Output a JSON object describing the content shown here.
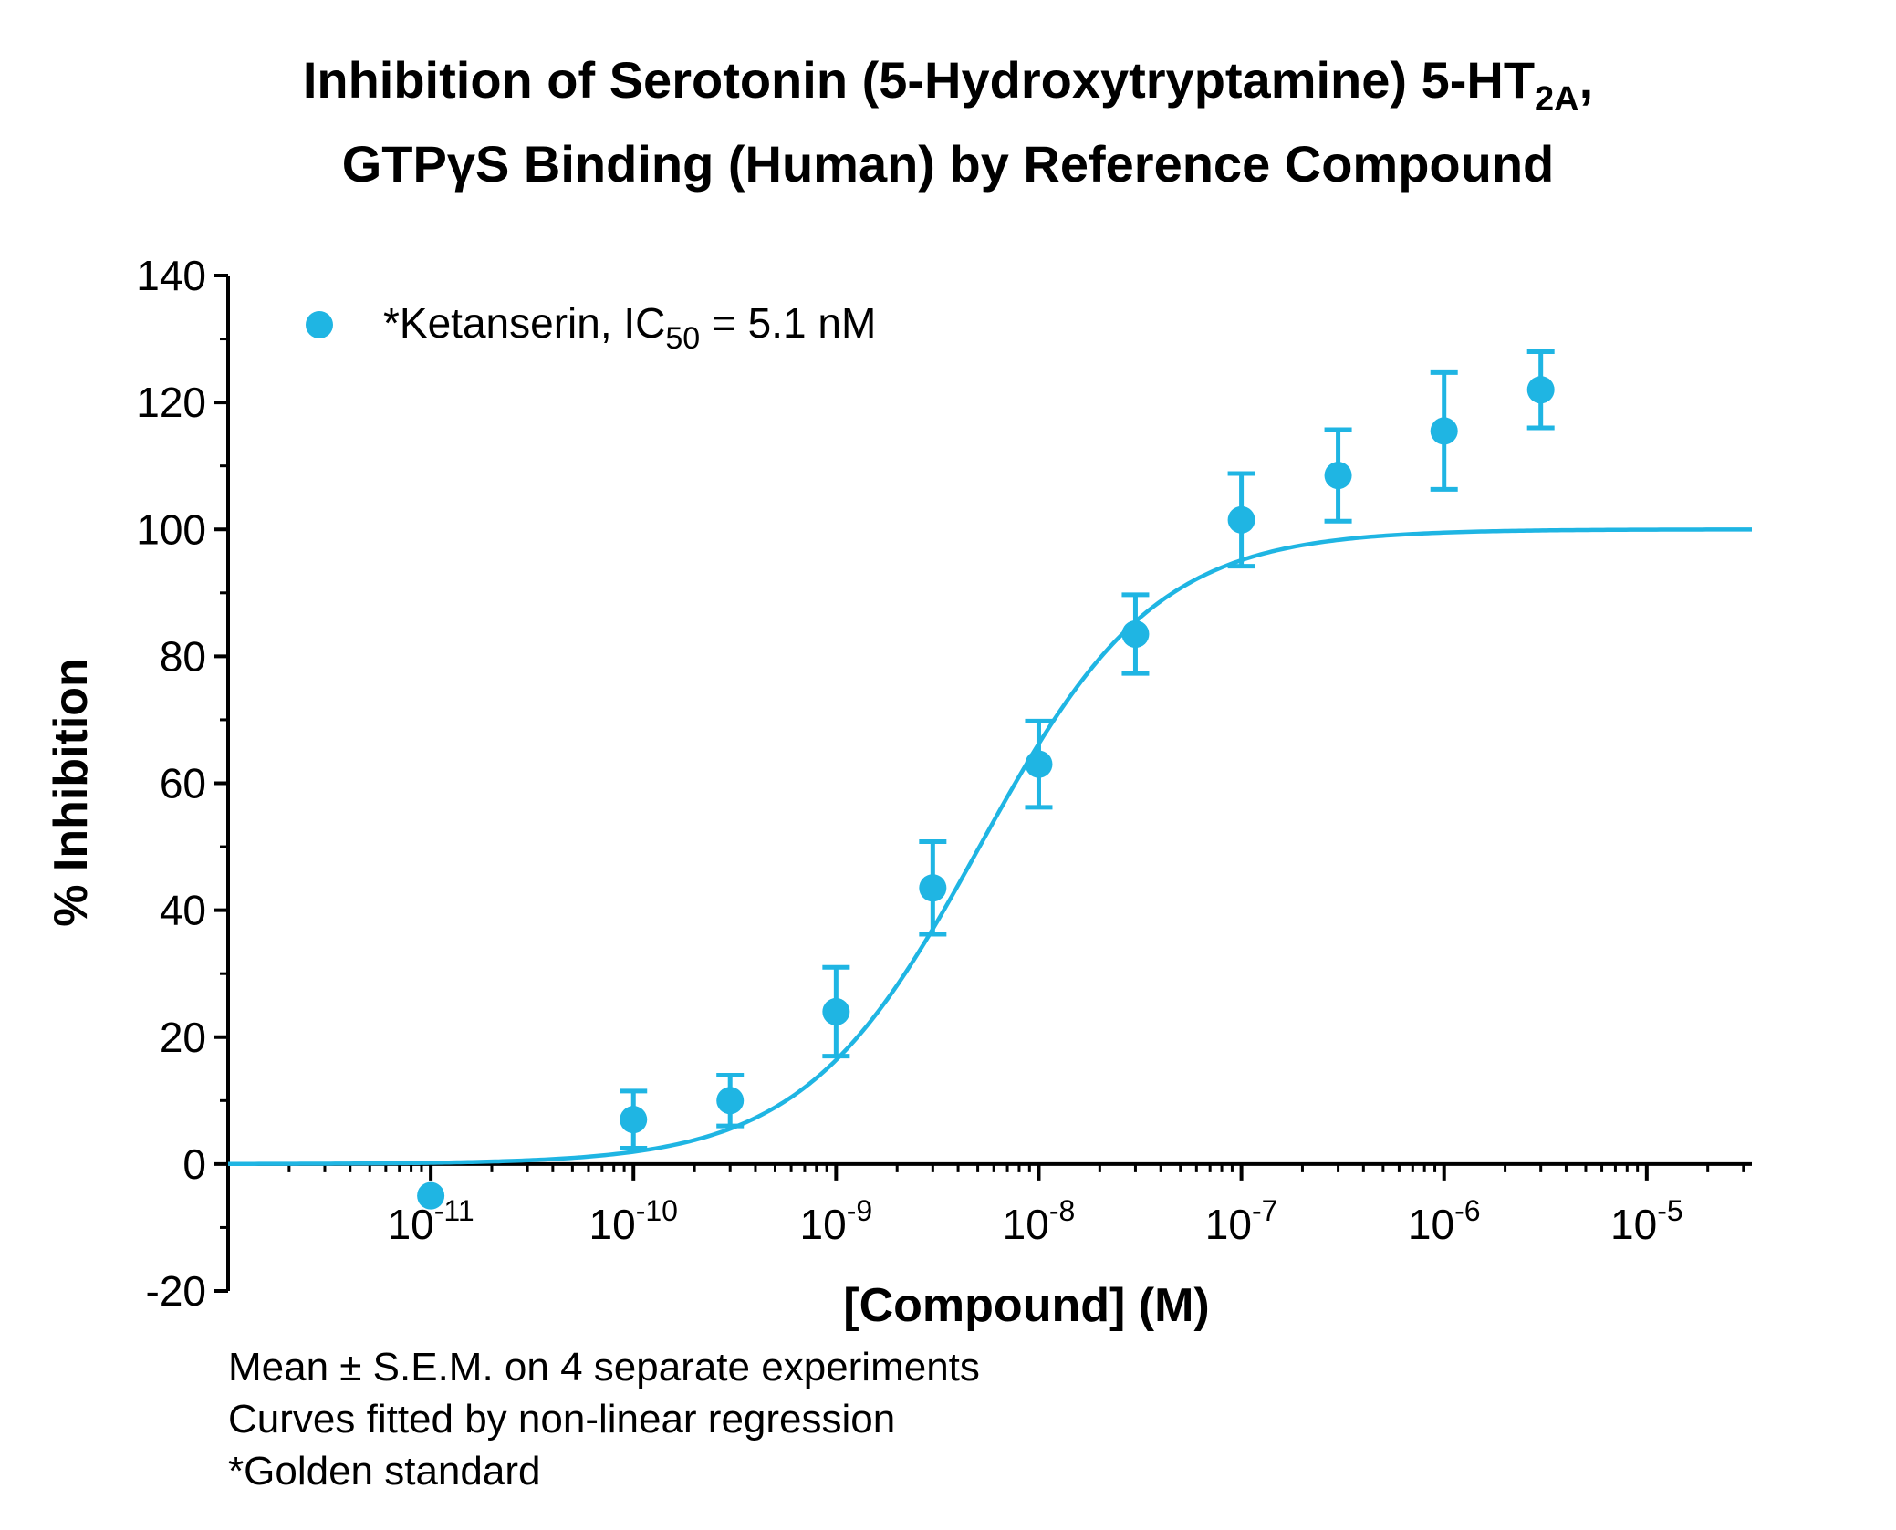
{
  "title": {
    "line1_main": "Inhibition of Serotonin (5-Hydroxytryptamine) 5-HT",
    "line1_sub": "2A",
    "line1_end": ",",
    "line2": "GTPγS Binding (Human) by Reference Compound"
  },
  "notes": [
    "Mean ± S.E.M. on 4 separate experiments",
    "Curves fitted by non-linear regression",
    "*Golden standard"
  ],
  "colors": {
    "series": "#1fb5e3",
    "axis": "#000000"
  },
  "chart_data": {
    "type": "scatter",
    "xlabel": "[Compound] (M)",
    "ylabel": "% Inhibition",
    "x_scale": "log",
    "xlim": [
      1e-12,
      3.3e-05
    ],
    "ylim": [
      -20,
      140
    ],
    "y_ticks": [
      -20,
      0,
      20,
      40,
      60,
      80,
      100,
      120,
      140
    ],
    "x_tick_labels": [
      {
        "value": 1e-11,
        "base": "10",
        "exp": "-11"
      },
      {
        "value": 1e-10,
        "base": "10",
        "exp": "-10"
      },
      {
        "value": 1e-09,
        "base": "10",
        "exp": "-9"
      },
      {
        "value": 1e-08,
        "base": "10",
        "exp": "-8"
      },
      {
        "value": 1e-07,
        "base": "10",
        "exp": "-7"
      },
      {
        "value": 1e-06,
        "base": "10",
        "exp": "-6"
      },
      {
        "value": 1e-05,
        "base": "10",
        "exp": "-5"
      }
    ],
    "grid": false,
    "legend_position": "top-left",
    "series": [
      {
        "name": "*Ketanserin, IC50 = 5.1 nM",
        "legend_main": "*Ketanserin, IC",
        "legend_sub": "50",
        "legend_end": " = 5.1 nM",
        "points": [
          {
            "x": 1e-11,
            "y": -5,
            "sem": 0
          },
          {
            "x": 1e-10,
            "y": 7,
            "sem": 4.5
          },
          {
            "x": 3e-10,
            "y": 10,
            "sem": 4
          },
          {
            "x": 1e-09,
            "y": 24,
            "sem": 7
          },
          {
            "x": 3e-09,
            "y": 43.5,
            "sem": 7.3
          },
          {
            "x": 1e-08,
            "y": 63,
            "sem": 6.8
          },
          {
            "x": 3e-08,
            "y": 83.5,
            "sem": 6.2
          },
          {
            "x": 1e-07,
            "y": 101.5,
            "sem": 7.3
          },
          {
            "x": 3e-07,
            "y": 108.5,
            "sem": 7.2
          },
          {
            "x": 1e-06,
            "y": 115.5,
            "sem": 9.2
          },
          {
            "x": 3e-06,
            "y": 122,
            "sem": 6
          }
        ],
        "fit": {
          "model": "sigmoid",
          "bottom": 0,
          "top": 100,
          "ic50": 5.1e-09,
          "hill": 1
        }
      }
    ]
  }
}
